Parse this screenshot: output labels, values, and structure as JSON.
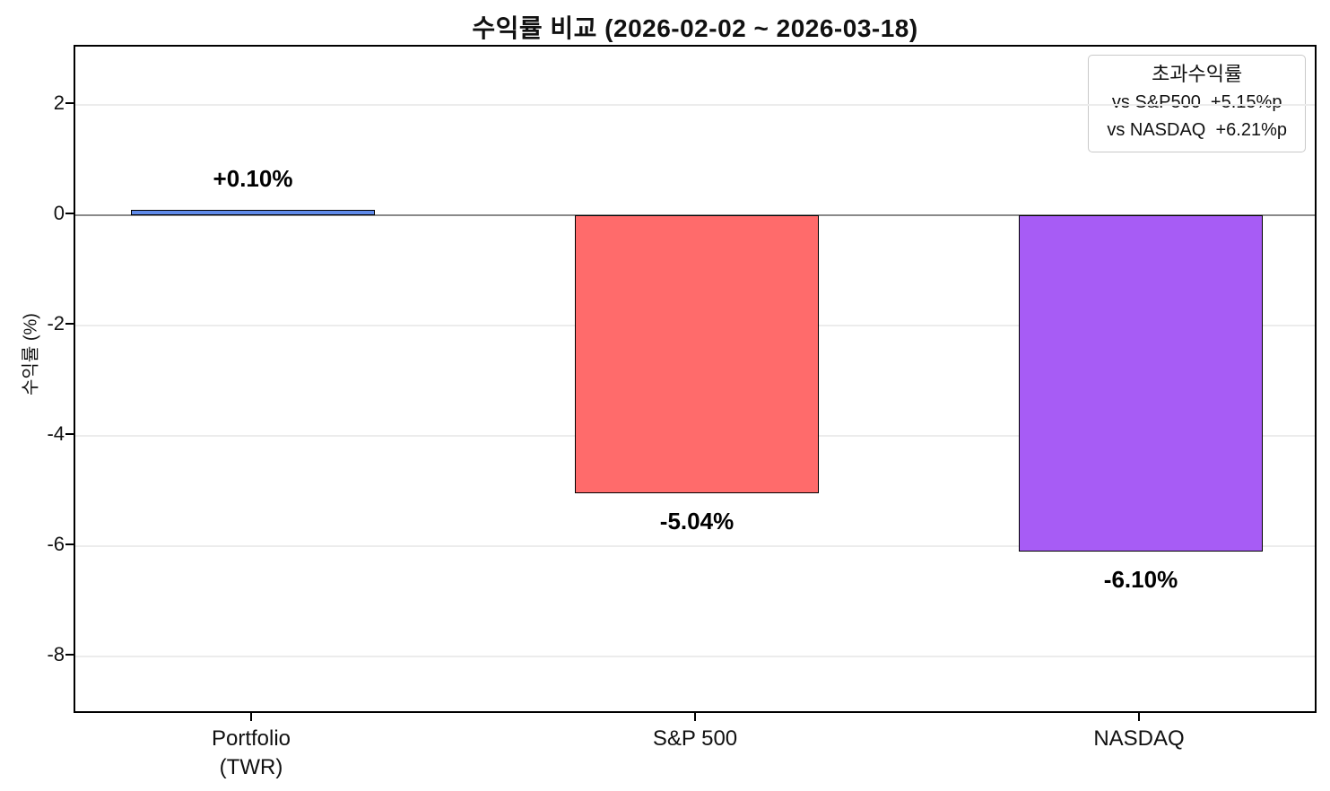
{
  "chart_data": {
    "type": "bar",
    "title": "수익률 비교 (2026-02-02 ~ 2026-03-18)",
    "ylabel": "수익률 (%)",
    "categories": [
      "Portfolio\n(TWR)",
      "S&P 500",
      "NASDAQ"
    ],
    "values": [
      0.1,
      -5.04,
      -6.1
    ],
    "bar_labels": [
      "+0.10%",
      "-5.04%",
      "-6.10%"
    ],
    "bar_colors": [
      "#5F8AE9",
      "#FF6B6B",
      "#A75CF5"
    ],
    "bar_edge_color": "#000000",
    "ylim": [
      -9.06,
      3.06
    ],
    "yticks": [
      2,
      0,
      -2,
      -4,
      -6,
      -8
    ],
    "grid": true,
    "gridline_color": "#ececec",
    "zero_line_color": "#8a8a8a",
    "legend": {
      "position": "top-right",
      "title": "초과수익률",
      "items": [
        "vs S&P500  +5.15%p",
        "vs NASDAQ  +6.21%p"
      ]
    }
  }
}
